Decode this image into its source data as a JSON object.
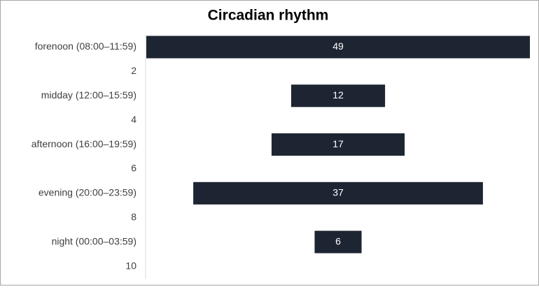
{
  "chart_data": {
    "type": "funnel",
    "title": "Circadian rhythm",
    "categories": [
      "forenoon (08:00–11:59)",
      "2",
      "midday (12:00–15:59)",
      "4",
      "afternoon (16:00–19:59)",
      "6",
      "evening (20:00–23:59)",
      "8",
      "night (00:00–03:59)",
      "10"
    ],
    "values": [
      49,
      null,
      12,
      null,
      17,
      null,
      37,
      null,
      6,
      null
    ],
    "color": "#1e2532"
  }
}
